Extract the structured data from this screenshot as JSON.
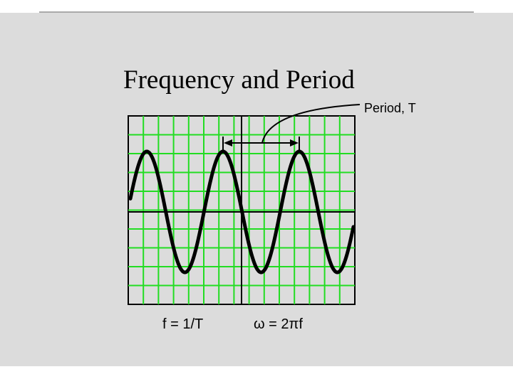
{
  "slide": {
    "title": "Frequency and Period",
    "annotation": "Period, T",
    "formulas": [
      "f = 1/T",
      "ω = 2πf"
    ]
  }
}
